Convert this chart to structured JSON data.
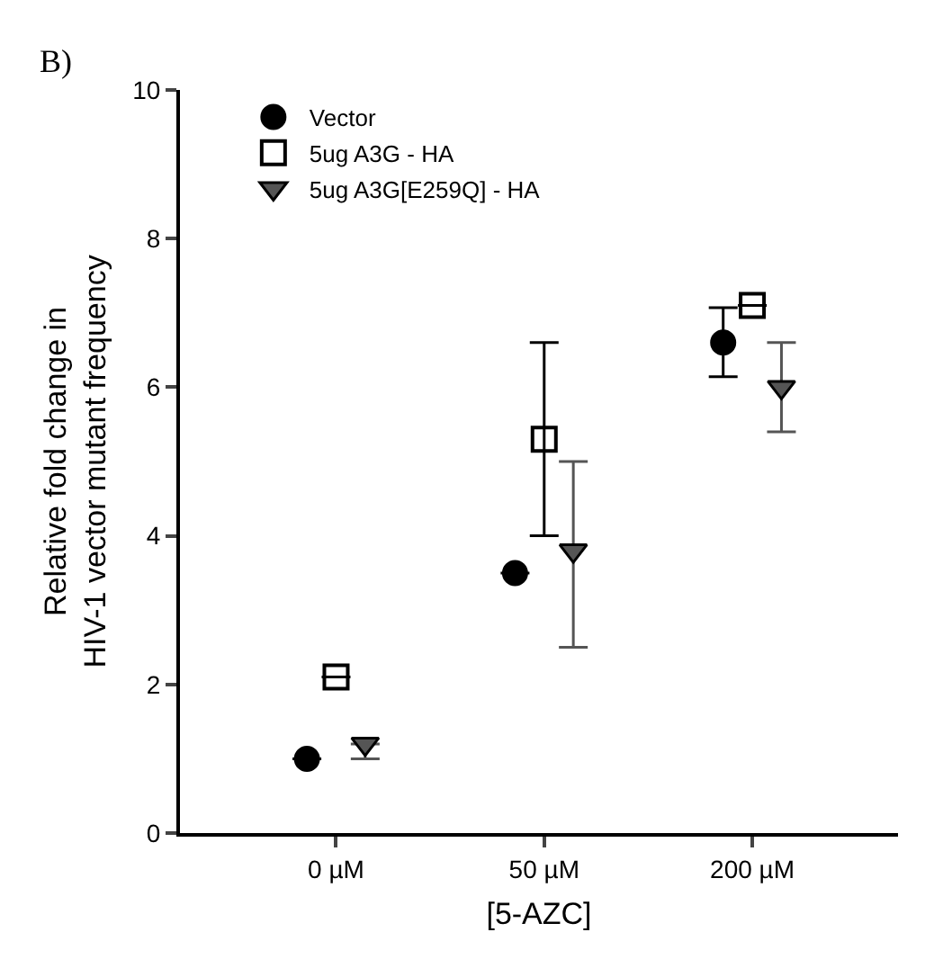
{
  "chart_data": {
    "type": "scatter",
    "title": "B)",
    "xlabel": "[5-AZC]",
    "ylabel": "Relative fold change in\nHIV-1 vector mutant frequency",
    "categories": [
      "0 µM",
      "50 µM",
      "200 µM"
    ],
    "series": [
      {
        "name": "Vector",
        "color": "#000000",
        "marker": "circle",
        "values": [
          1.0,
          3.5,
          6.6
        ],
        "errors": [
          null,
          null,
          [
            6.14,
            7.07
          ]
        ]
      },
      {
        "name": "5ug A3G - HA",
        "color": "#000000",
        "marker": "square",
        "values": [
          2.1,
          5.3,
          7.1
        ],
        "errors": [
          null,
          [
            4.0,
            6.6
          ],
          null
        ]
      },
      {
        "name": "5ug A3G[E259Q] - HA",
        "color": "#555555",
        "marker": "triangle",
        "values": [
          1.2,
          3.8,
          6.0
        ],
        "errors": [
          [
            1.0,
            1.2
          ],
          [
            2.5,
            5.0
          ],
          [
            5.4,
            6.6
          ]
        ]
      }
    ],
    "ylim": [
      0,
      10
    ],
    "yticks": [
      0,
      2,
      4,
      6,
      8,
      10
    ],
    "legend": "top left"
  }
}
